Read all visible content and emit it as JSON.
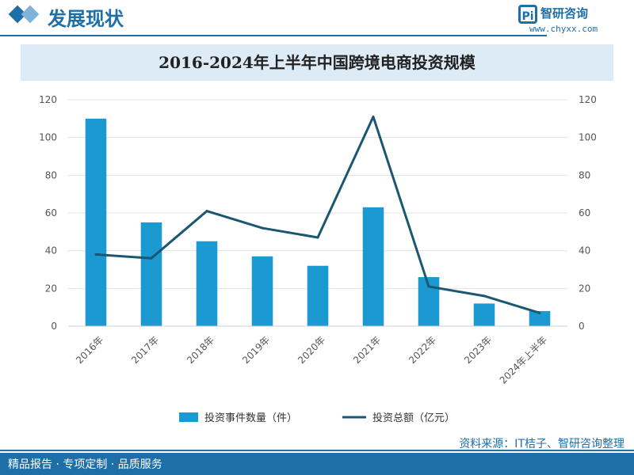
{
  "header": {
    "title": "发展现状"
  },
  "logo": {
    "mark": "Pi",
    "name": "智研咨询",
    "url": "www.chyxx.com"
  },
  "footer": {
    "text": "精品报告 · 专项定制 · 品质服务"
  },
  "source": "资料来源：IT桔子、智研咨询整理",
  "colors": {
    "bar": "#1a9ad1",
    "line": "#1b5673",
    "brand": "#1e6fa8",
    "band": "#dcebf6"
  },
  "chart_data": {
    "type": "bar",
    "title": "2016-2024年上半年中国跨境电商投资规模",
    "categories": [
      "2016年",
      "2017年",
      "2018年",
      "2019年",
      "2020年",
      "2021年",
      "2022年",
      "2023年",
      "2024年上半年"
    ],
    "series": [
      {
        "name": "投资事件数量（件）",
        "type": "bar",
        "axis": "left",
        "values": [
          110,
          55,
          45,
          37,
          32,
          63,
          26,
          12,
          8
        ]
      },
      {
        "name": "投资总额（亿元）",
        "type": "line",
        "axis": "right",
        "values": [
          38,
          36,
          61,
          52,
          47,
          111,
          21,
          16,
          7
        ]
      }
    ],
    "ylim_left": [
      0,
      120
    ],
    "ylim_right": [
      0,
      120
    ],
    "yticks": [
      0,
      20,
      40,
      60,
      80,
      100,
      120
    ],
    "grid": true,
    "legend": "bottom"
  }
}
